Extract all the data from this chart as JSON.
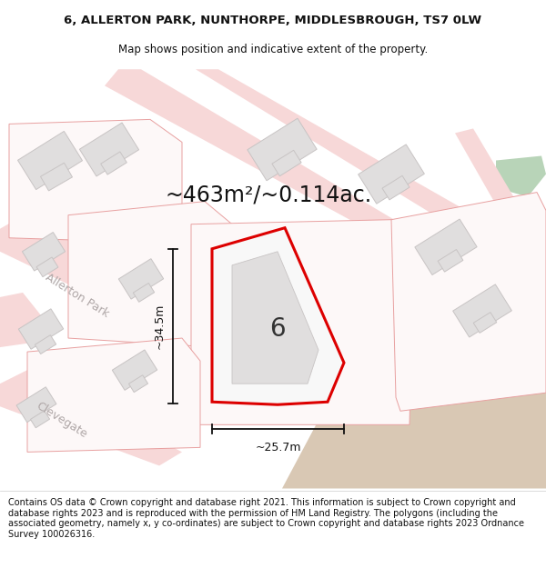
{
  "title_line1": "6, ALLERTON PARK, NUNTHORPE, MIDDLESBROUGH, TS7 0LW",
  "title_line2": "Map shows position and indicative extent of the property.",
  "area_label": "~463m²/~0.114ac.",
  "dim_vertical": "~34.5m",
  "dim_horizontal": "~25.7m",
  "property_number": "6",
  "street1": "Allerton Park",
  "street2": "Clevegate",
  "copyright_text": "Contains OS data © Crown copyright and database right 2021. This information is subject to Crown copyright and database rights 2023 and is reproduced with the permission of HM Land Registry. The polygons (including the associated geometry, namely x, y co-ordinates) are subject to Crown copyright and database rights 2023 Ordnance Survey 100026316.",
  "bg_color": "#ffffff",
  "road_fill": "#f7d8d8",
  "road_edge": "#e8a0a0",
  "lot_fill": "#f2f0f0",
  "lot_edge": "#d8d0d0",
  "building_fill": "#e0dede",
  "building_edge": "#c8c4c4",
  "property_red": "#dd0000",
  "property_white": "#f8f8f8",
  "tan_color": "#d9c8b4",
  "green_color": "#b8d4b8",
  "title_fs": 9.5,
  "sub_fs": 8.5,
  "copy_fs": 7.0,
  "area_fs": 17,
  "dim_fs": 9,
  "street_fs": 9,
  "num_fs": 20
}
